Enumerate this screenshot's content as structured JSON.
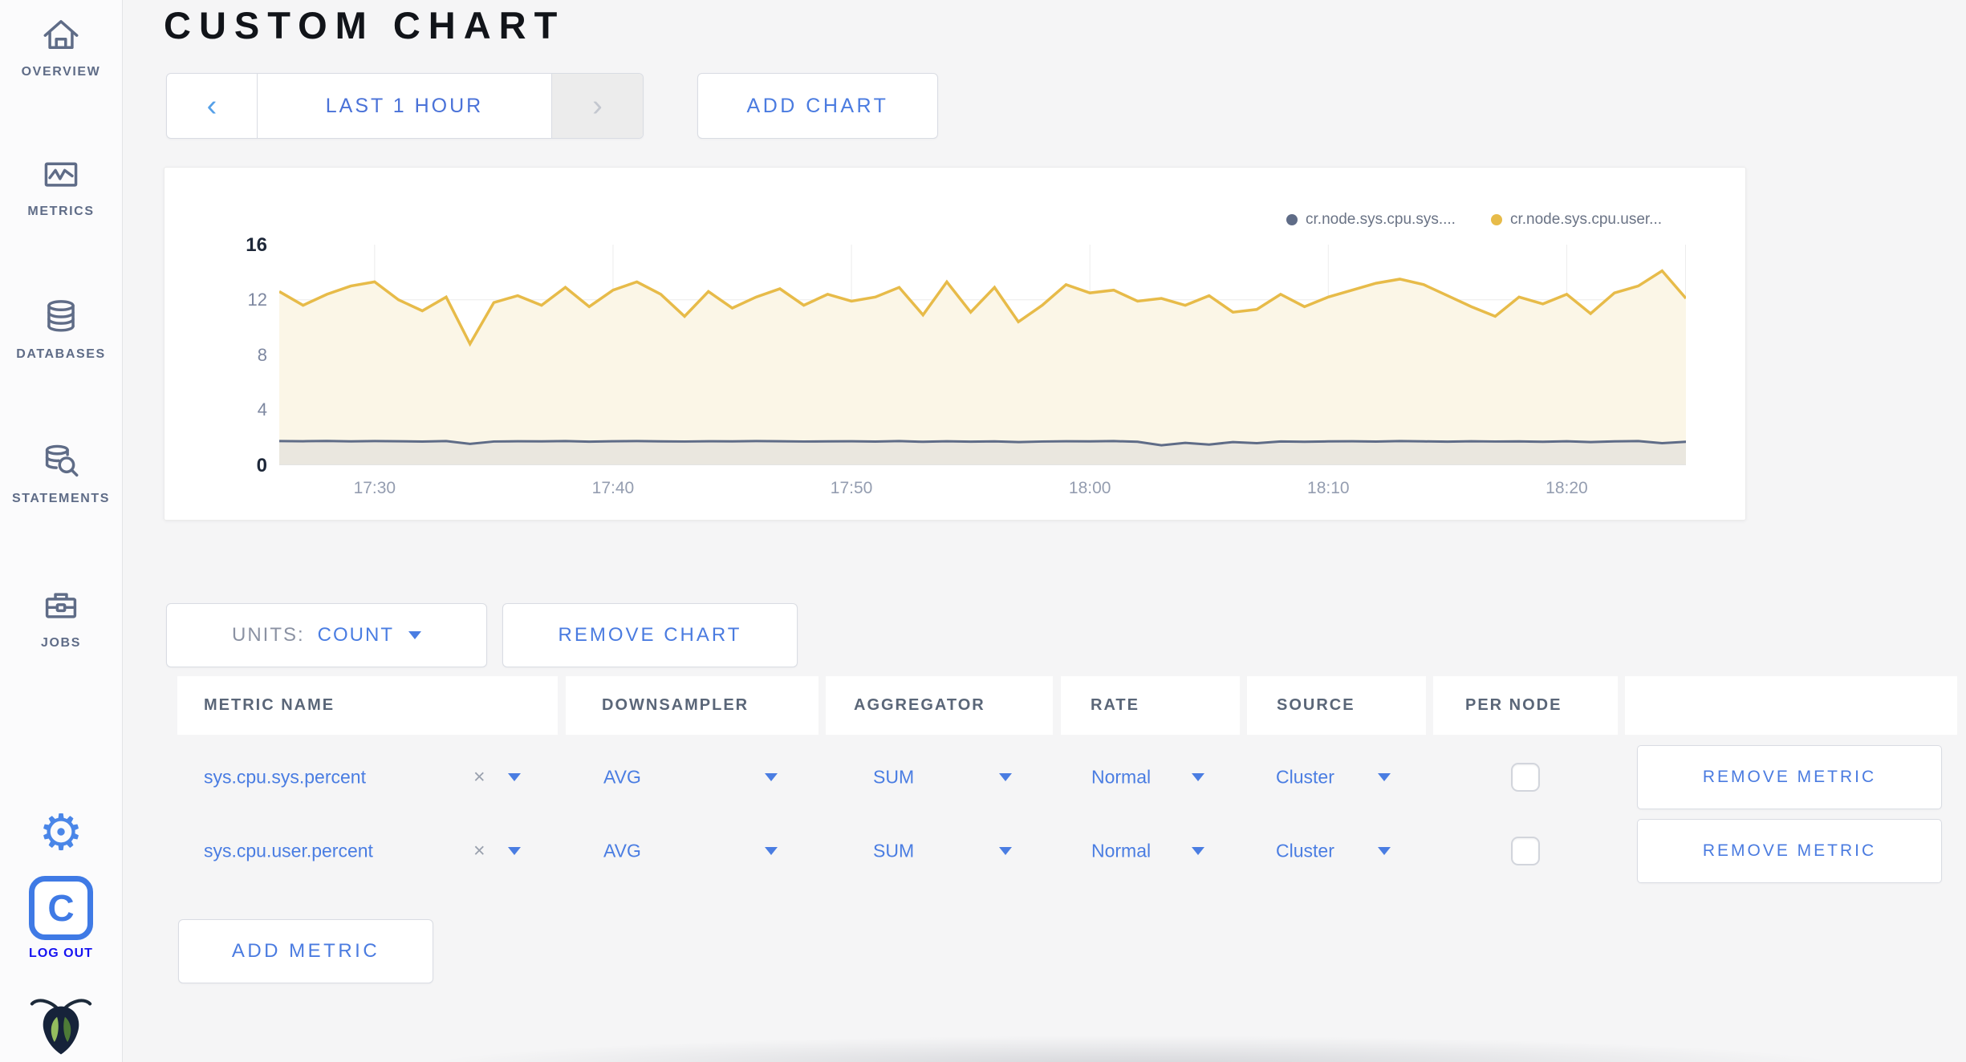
{
  "sidebar": {
    "items": [
      {
        "label": "OVERVIEW",
        "icon": "home-icon"
      },
      {
        "label": "METRICS",
        "icon": "metrics-icon"
      },
      {
        "label": "DATABASES",
        "icon": "database-icon"
      },
      {
        "label": "STATEMENTS",
        "icon": "statements-icon"
      },
      {
        "label": "JOBS",
        "icon": "jobs-icon"
      }
    ],
    "logout_label": "LOG OUT",
    "logo_letter": "C",
    "gear_glyph": "⚙"
  },
  "header": {
    "title": "CUSTOM CHART"
  },
  "timerange": {
    "label": "LAST 1 HOUR",
    "prev_glyph": "‹",
    "next_glyph": "›"
  },
  "add_chart_label": "ADD CHART",
  "chart_data": {
    "type": "line",
    "title": "",
    "xlabel": "",
    "ylabel": "",
    "ylim": [
      0,
      16
    ],
    "yticks": [
      0,
      4,
      8,
      12,
      16
    ],
    "grid": true,
    "legend_position": "top-right",
    "x_minutes_start": "17:26",
    "x_step_minutes": 1,
    "xticks": [
      {
        "label": "17:30",
        "minute": 4
      },
      {
        "label": "17:40",
        "minute": 14
      },
      {
        "label": "17:50",
        "minute": 24
      },
      {
        "label": "18:00",
        "minute": 34
      },
      {
        "label": "18:10",
        "minute": 44
      },
      {
        "label": "18:20",
        "minute": 54
      }
    ],
    "series": [
      {
        "name": "cr.node.sys.cpu.sys....",
        "color": "#5f6c87",
        "fill": "#eae7df",
        "values": [
          1.75,
          1.74,
          1.76,
          1.73,
          1.75,
          1.74,
          1.72,
          1.75,
          1.55,
          1.72,
          1.74,
          1.73,
          1.75,
          1.71,
          1.74,
          1.75,
          1.73,
          1.72,
          1.74,
          1.73,
          1.75,
          1.74,
          1.72,
          1.73,
          1.74,
          1.72,
          1.75,
          1.7,
          1.74,
          1.71,
          1.73,
          1.68,
          1.72,
          1.74,
          1.73,
          1.75,
          1.7,
          1.45,
          1.62,
          1.5,
          1.68,
          1.6,
          1.72,
          1.7,
          1.73,
          1.74,
          1.72,
          1.75,
          1.73,
          1.71,
          1.74,
          1.72,
          1.73,
          1.7,
          1.74,
          1.68,
          1.73,
          1.75,
          1.6,
          1.7
        ]
      },
      {
        "name": "cr.node.sys.cpu.user...",
        "color": "#e7bb49",
        "fill": "#fbf6e7",
        "values": [
          12.6,
          11.6,
          12.4,
          13.0,
          13.3,
          12.0,
          11.2,
          12.2,
          8.8,
          11.8,
          12.3,
          11.6,
          12.9,
          11.5,
          12.7,
          13.3,
          12.4,
          10.8,
          12.6,
          11.4,
          12.2,
          12.8,
          11.6,
          12.4,
          11.9,
          12.2,
          12.9,
          10.9,
          13.3,
          11.1,
          12.9,
          10.4,
          11.6,
          13.1,
          12.5,
          12.7,
          11.9,
          12.1,
          11.6,
          12.3,
          11.1,
          11.3,
          12.4,
          11.5,
          12.2,
          12.7,
          13.2,
          13.5,
          13.1,
          12.3,
          11.5,
          10.8,
          12.2,
          11.7,
          12.4,
          11.0,
          12.5,
          13.0,
          14.1,
          12.1
        ]
      }
    ]
  },
  "units": {
    "label": "UNITS:",
    "value": "COUNT"
  },
  "remove_chart_label": "REMOVE CHART",
  "metrics_table": {
    "columns": [
      "METRIC NAME",
      "DOWNSAMPLER",
      "AGGREGATOR",
      "RATE",
      "SOURCE",
      "PER NODE",
      ""
    ],
    "rows": [
      {
        "metric": "sys.cpu.sys.percent",
        "clear_glyph": "×",
        "downsampler": "AVG",
        "aggregator": "SUM",
        "rate": "Normal",
        "source": "Cluster",
        "per_node_checked": false,
        "remove_label": "REMOVE METRIC"
      },
      {
        "metric": "sys.cpu.user.percent",
        "clear_glyph": "×",
        "downsampler": "AVG",
        "aggregator": "SUM",
        "rate": "Normal",
        "source": "Cluster",
        "per_node_checked": false,
        "remove_label": "REMOVE METRIC"
      }
    ]
  },
  "add_metric_label": "ADD METRIC",
  "colors": {
    "accent_blue": "#4a7de2",
    "logout_blue": "#1713f1",
    "slate": "#5f6c87",
    "series_sys": "#5f6c87",
    "series_user": "#e7bb49",
    "page_bg": "#f5f5f6"
  }
}
